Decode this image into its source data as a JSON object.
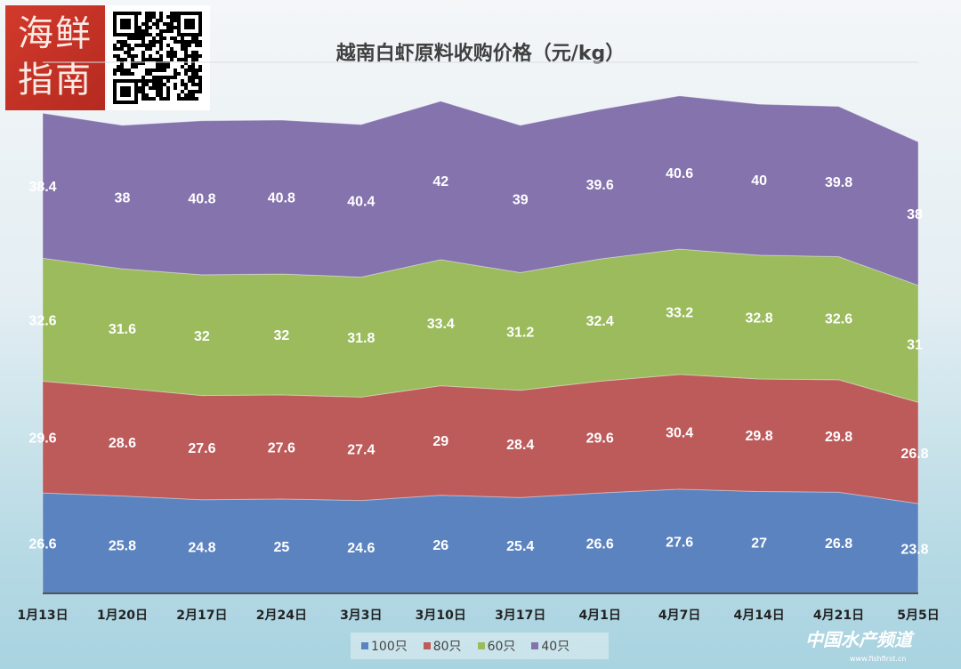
{
  "logo": {
    "text": "海鲜指南"
  },
  "watermark": {
    "text": "中国水产频道",
    "url": "www.fishfirst.cn"
  },
  "chart_data": {
    "type": "area",
    "stacked": true,
    "title": "越南白虾原料收购价格（元/kg）",
    "xlabel": "",
    "ylabel": "",
    "ylim": [
      0,
      140
    ],
    "legend_position": "bottom",
    "categories": [
      "1月13日",
      "1月20日",
      "2月17日",
      "2月24日",
      "3月3日",
      "3月10日",
      "3月17日",
      "4月1日",
      "4月7日",
      "4月14日",
      "4月21日",
      "5月5日"
    ],
    "series": [
      {
        "name": "100只",
        "color": "#5b83bf",
        "values": [
          26.6,
          25.8,
          24.8,
          25,
          24.6,
          26,
          25.4,
          26.6,
          27.6,
          27,
          26.8,
          23.8
        ]
      },
      {
        "name": "80只",
        "color": "#bd5a5a",
        "values": [
          29.6,
          28.6,
          27.6,
          27.6,
          27.4,
          29,
          28.4,
          29.6,
          30.4,
          29.8,
          29.8,
          26.8
        ]
      },
      {
        "name": "60只",
        "color": "#9bbb5c",
        "values": [
          32.6,
          31.6,
          32,
          32,
          31.8,
          33.4,
          31.2,
          32.4,
          33.2,
          32.8,
          32.6,
          31
        ]
      },
      {
        "name": "40只",
        "color": "#8573ad",
        "values": [
          38.4,
          38,
          40.8,
          40.8,
          40.4,
          42,
          39,
          39.6,
          40.6,
          40,
          39.8,
          38
        ]
      }
    ]
  }
}
